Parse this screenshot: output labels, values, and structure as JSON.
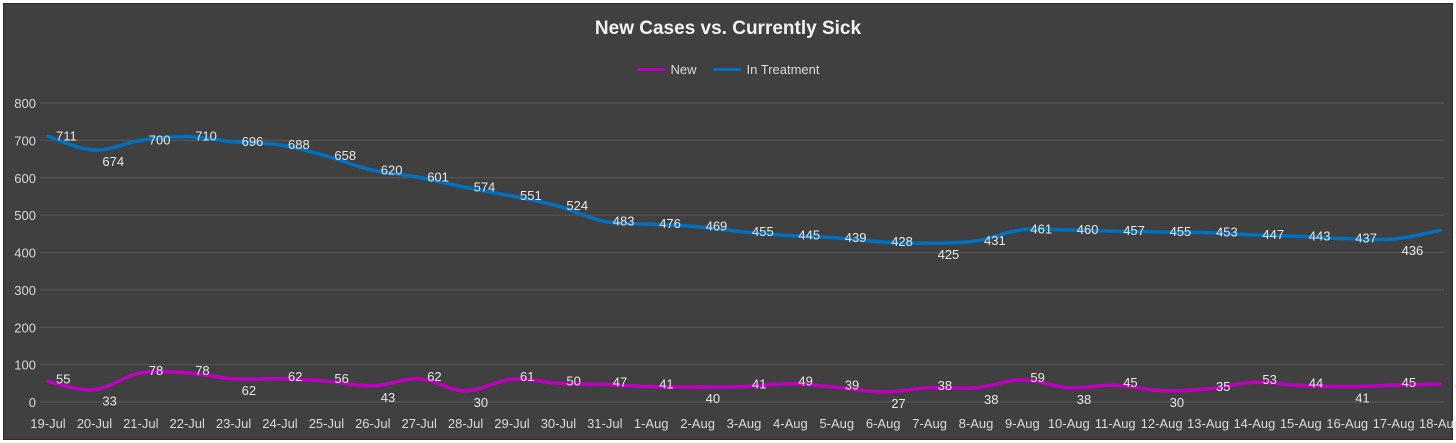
{
  "chart_data": {
    "type": "line",
    "title": "New Cases vs. Currently Sick",
    "legend_position": "top",
    "grid": true,
    "ylim": [
      0,
      800
    ],
    "yticks": [
      0,
      100,
      200,
      300,
      400,
      500,
      600,
      700,
      800
    ],
    "categories": [
      "19-Jul",
      "20-Jul",
      "21-Jul",
      "22-Jul",
      "23-Jul",
      "24-Jul",
      "25-Jul",
      "26-Jul",
      "27-Jul",
      "28-Jul",
      "29-Jul",
      "30-Jul",
      "31-Jul",
      "1-Aug",
      "2-Aug",
      "3-Aug",
      "4-Aug",
      "5-Aug",
      "6-Aug",
      "7-Aug",
      "8-Aug",
      "9-Aug",
      "10-Aug",
      "11-Aug",
      "12-Aug",
      "13-Aug",
      "14-Aug",
      "15-Aug",
      "16-Aug",
      "17-Aug",
      "18-Aug"
    ],
    "series": [
      {
        "name": "New",
        "color": "#c000c0",
        "values": [
          55,
          33,
          78,
          78,
          62,
          62,
          56,
          43,
          62,
          30,
          61,
          50,
          47,
          41,
          40,
          41,
          49,
          39,
          27,
          38,
          38,
          59,
          38,
          45,
          30,
          35,
          53,
          44,
          41,
          45,
          48
        ]
      },
      {
        "name": "In Treatment",
        "color": "#0070c0",
        "values": [
          711,
          674,
          700,
          710,
          696,
          688,
          658,
          620,
          601,
          574,
          551,
          524,
          483,
          476,
          469,
          455,
          445,
          439,
          428,
          425,
          431,
          461,
          460,
          457,
          455,
          453,
          447,
          443,
          437,
          436,
          459
        ]
      }
    ]
  },
  "colors": {
    "background": "#404040",
    "gridline": "#5a5a5a",
    "text": "#d9d9d9"
  }
}
